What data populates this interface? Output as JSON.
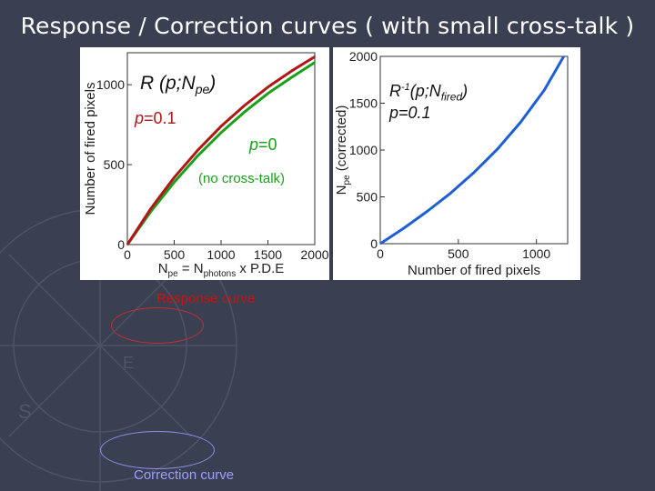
{
  "slide": {
    "title": "Response / Correction curves ( with small cross-talk )"
  },
  "colors": {
    "background": "#3b3f52",
    "title_text": "#ffffff",
    "series_p0": "#1aa01a",
    "series_p01": "#b01818",
    "series_inverse": "#1f5fd6",
    "response_caption": "#d01010",
    "correction_caption": "#9aa0ff"
  },
  "annotations": {
    "left_function": "R (p;N",
    "left_function_sub": "pe",
    "left_function_close": ")",
    "left_p01": "=0.1",
    "left_p0": "=0",
    "left_p_letter": "p",
    "no_crosstalk": "(no cross-talk)",
    "right_function": "R",
    "right_function_sup": "-1",
    "right_function_mid": "(p;N",
    "right_function_sub": "fired",
    "right_function_close": ")",
    "right_p01": "p=0.1"
  },
  "captions": {
    "response": "Response curve",
    "correction": "Correction curve"
  },
  "chart_data": [
    {
      "type": "line",
      "title": "Response curve",
      "xlabel": "N_pe = N_photons x P.D.E",
      "xlabel_parts": {
        "n": "N",
        "sub": "pe",
        "eq": " = N",
        "sub2": "photons",
        "rest": " x P.D.E"
      },
      "ylabel": "Number of fired pixels",
      "xlim": [
        0,
        2000
      ],
      "ylim": [
        0,
        1200
      ],
      "x_ticks": [
        0,
        500,
        1000,
        1500,
        2000
      ],
      "y_ticks": [
        0,
        500,
        1000
      ],
      "x": [
        0,
        250,
        500,
        750,
        1000,
        1250,
        1500,
        1750,
        2000
      ],
      "series": [
        {
          "name": "p=0",
          "color": "#1aa01a",
          "values": [
            0,
            207,
            390,
            555,
            700,
            830,
            945,
            1045,
            1140
          ]
        },
        {
          "name": "p=0.1",
          "color": "#b01818",
          "values": [
            0,
            225,
            420,
            590,
            740,
            870,
            985,
            1085,
            1175
          ]
        }
      ]
    },
    {
      "type": "line",
      "title": "Correction curve",
      "xlabel": "Number of fired pixels",
      "ylabel": "N_pe (corrected)",
      "ylabel_parts": {
        "n": "N",
        "sub": "pe",
        "rest": " (corrected)"
      },
      "xlim": [
        0,
        1200
      ],
      "ylim": [
        0,
        2000
      ],
      "x_ticks": [
        0,
        500,
        1000
      ],
      "y_ticks": [
        0,
        500,
        1000,
        1500,
        2000
      ],
      "x": [
        0,
        150,
        300,
        450,
        600,
        750,
        900,
        1050,
        1175
      ],
      "series": [
        {
          "name": "p=0.1",
          "color": "#1f5fd6",
          "values": [
            0,
            165,
            345,
            540,
            760,
            1010,
            1300,
            1640,
            2000
          ]
        }
      ]
    }
  ]
}
